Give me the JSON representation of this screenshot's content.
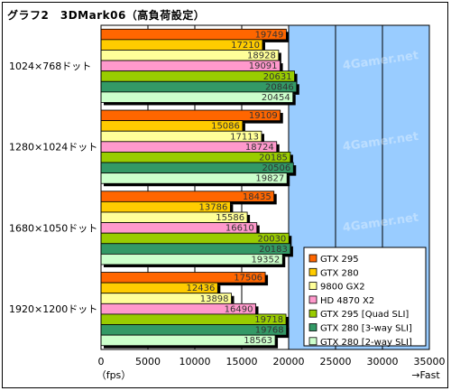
{
  "chart_data": {
    "type": "bar",
    "orientation": "horizontal",
    "title": "グラフ2　3DMark06（高負荷設定）",
    "categories": [
      "1024×768ドット",
      "1280×1024ドット",
      "1680×1050ドット",
      "1920×1200ドット"
    ],
    "series": [
      {
        "name": "GTX 295",
        "color": "#ff6600",
        "values": [
          19749,
          19109,
          18435,
          17506
        ]
      },
      {
        "name": "GTX 280",
        "color": "#ffcc00",
        "values": [
          17210,
          15086,
          13786,
          12436
        ]
      },
      {
        "name": "9800 GX2",
        "color": "#ffff99",
        "values": [
          18928,
          17113,
          15586,
          13898
        ]
      },
      {
        "name": "HD 4870 X2",
        "color": "#ff99cc",
        "values": [
          19091,
          18724,
          16610,
          16490
        ]
      },
      {
        "name": "GTX 295 [Quad SLI]",
        "color": "#99cc00",
        "values": [
          20631,
          20185,
          20030,
          19718
        ]
      },
      {
        "name": "GTX 280 [3-way SLI]",
        "color": "#339966",
        "values": [
          20846,
          20506,
          20183,
          19768
        ]
      },
      {
        "name": "GTX 280 [2-way SLI]",
        "color": "#ccffcc",
        "values": [
          20454,
          19827,
          19352,
          18563
        ]
      }
    ],
    "xlim": [
      0,
      35000
    ],
    "xticks": [
      0,
      5000,
      10000,
      15000,
      20000,
      25000,
      30000,
      35000
    ],
    "xticklabels": [
      "0",
      "5000",
      "10000",
      "15000",
      "20000",
      "25000",
      "30000",
      "35000"
    ],
    "xunit_label": "（fps）",
    "xdirection_label": "→Fast",
    "legend_position": "bottom-right",
    "watermark": "4Gamer.net",
    "plot_background": "#99ccff",
    "bar_background": "#ffffff"
  }
}
